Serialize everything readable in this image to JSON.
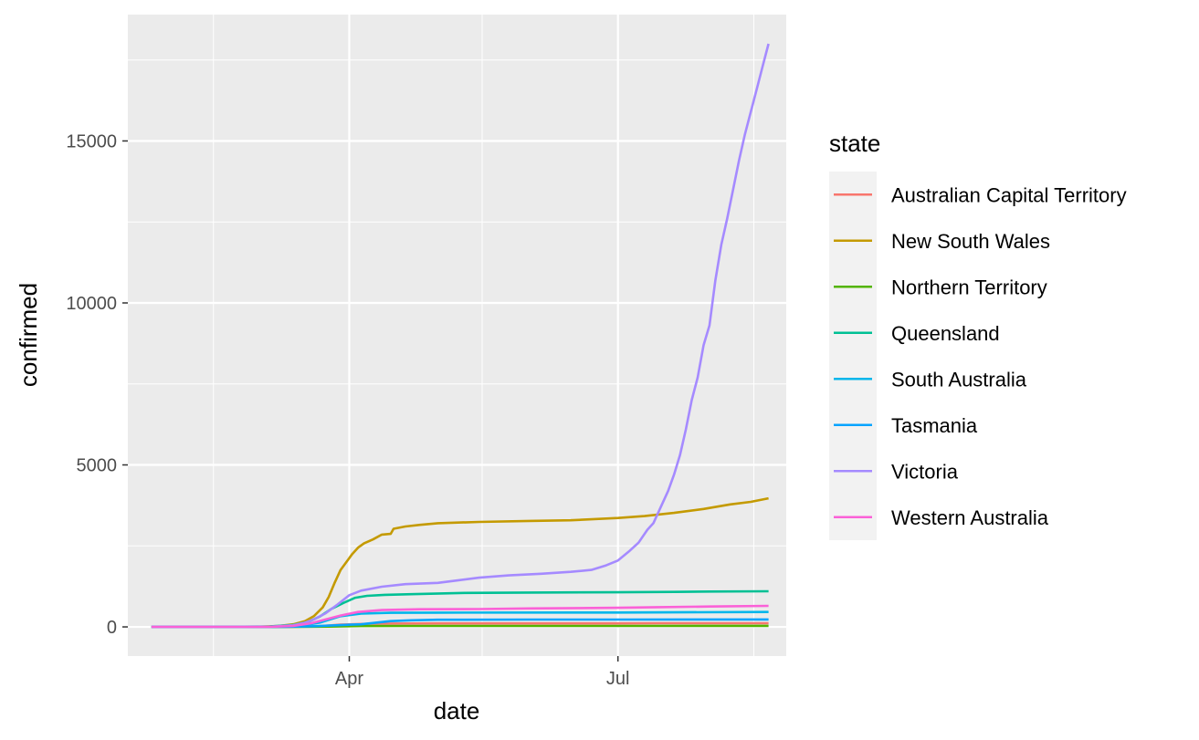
{
  "chart_data": {
    "type": "line",
    "xlabel": "date",
    "ylabel": "confirmed",
    "x_tick_labels": [
      "Apr",
      "Jul"
    ],
    "y_tick_labels": [
      "0",
      "5000",
      "10000",
      "15000"
    ],
    "y_ticks": [
      0,
      5000,
      10000,
      15000
    ],
    "xlim": [
      "2020-01-17",
      "2020-08-27"
    ],
    "ylim": [
      -900,
      18900
    ],
    "x_major_ticks": [
      "2020-04-01",
      "2020-07-01"
    ],
    "x_minor_ticks": [
      "2020-02-15",
      "2020-05-16",
      "2020-08-16"
    ],
    "y_minor_ticks": [
      2500,
      7500,
      12500,
      17500
    ],
    "grid": true,
    "legend_position": "right",
    "legend_title": "state",
    "series": [
      {
        "name": "Australian Capital Territory",
        "color": "#F8766D",
        "points": [
          [
            "2020-01-25",
            0
          ],
          [
            "2020-03-12",
            0
          ],
          [
            "2020-03-22",
            20
          ],
          [
            "2020-03-29",
            70
          ],
          [
            "2020-04-08",
            100
          ],
          [
            "2020-05-01",
            107
          ],
          [
            "2020-06-01",
            108
          ],
          [
            "2020-07-01",
            109
          ],
          [
            "2020-07-15",
            113
          ],
          [
            "2020-08-21",
            113
          ]
        ]
      },
      {
        "name": "New South Wales",
        "color": "#C49A00",
        "points": [
          [
            "2020-01-25",
            0
          ],
          [
            "2020-02-15",
            0
          ],
          [
            "2020-03-01",
            4
          ],
          [
            "2020-03-08",
            30
          ],
          [
            "2020-03-13",
            80
          ],
          [
            "2020-03-17",
            180
          ],
          [
            "2020-03-20",
            330
          ],
          [
            "2020-03-23",
            600
          ],
          [
            "2020-03-25",
            920
          ],
          [
            "2020-03-27",
            1350
          ],
          [
            "2020-03-29",
            1750
          ],
          [
            "2020-03-31",
            2000
          ],
          [
            "2020-04-02",
            2250
          ],
          [
            "2020-04-04",
            2450
          ],
          [
            "2020-04-06",
            2580
          ],
          [
            "2020-04-09",
            2700
          ],
          [
            "2020-04-12",
            2850
          ],
          [
            "2020-04-15",
            2870
          ],
          [
            "2020-04-16",
            3030
          ],
          [
            "2020-04-20",
            3100
          ],
          [
            "2020-04-25",
            3150
          ],
          [
            "2020-05-01",
            3200
          ],
          [
            "2020-05-15",
            3240
          ],
          [
            "2020-06-01",
            3270
          ],
          [
            "2020-06-15",
            3290
          ],
          [
            "2020-07-01",
            3360
          ],
          [
            "2020-07-10",
            3420
          ],
          [
            "2020-07-20",
            3520
          ],
          [
            "2020-07-30",
            3640
          ],
          [
            "2020-08-08",
            3780
          ],
          [
            "2020-08-15",
            3860
          ],
          [
            "2020-08-21",
            3970
          ]
        ]
      },
      {
        "name": "Northern Territory",
        "color": "#53B400",
        "points": [
          [
            "2020-01-25",
            0
          ],
          [
            "2020-03-15",
            0
          ],
          [
            "2020-03-25",
            10
          ],
          [
            "2020-04-05",
            27
          ],
          [
            "2020-04-20",
            29
          ],
          [
            "2020-06-01",
            29
          ],
          [
            "2020-07-01",
            30
          ],
          [
            "2020-08-21",
            33
          ]
        ]
      },
      {
        "name": "Queensland",
        "color": "#00C094",
        "points": [
          [
            "2020-01-25",
            0
          ],
          [
            "2020-02-20",
            0
          ],
          [
            "2020-03-05",
            15
          ],
          [
            "2020-03-13",
            60
          ],
          [
            "2020-03-18",
            150
          ],
          [
            "2020-03-22",
            320
          ],
          [
            "2020-03-26",
            560
          ],
          [
            "2020-03-30",
            740
          ],
          [
            "2020-04-03",
            900
          ],
          [
            "2020-04-07",
            960
          ],
          [
            "2020-04-13",
            990
          ],
          [
            "2020-04-22",
            1010
          ],
          [
            "2020-05-10",
            1050
          ],
          [
            "2020-06-01",
            1060
          ],
          [
            "2020-07-01",
            1070
          ],
          [
            "2020-07-20",
            1080
          ],
          [
            "2020-08-01",
            1090
          ],
          [
            "2020-08-21",
            1100
          ]
        ]
      },
      {
        "name": "South Australia",
        "color": "#00B6EB",
        "points": [
          [
            "2020-01-25",
            0
          ],
          [
            "2020-03-05",
            0
          ],
          [
            "2020-03-15",
            30
          ],
          [
            "2020-03-22",
            130
          ],
          [
            "2020-03-29",
            330
          ],
          [
            "2020-04-05",
            410
          ],
          [
            "2020-04-15",
            435
          ],
          [
            "2020-05-01",
            440
          ],
          [
            "2020-07-01",
            443
          ],
          [
            "2020-08-21",
            460
          ]
        ]
      },
      {
        "name": "Tasmania",
        "color": "#06A4FF",
        "points": [
          [
            "2020-01-25",
            0
          ],
          [
            "2020-03-10",
            0
          ],
          [
            "2020-03-20",
            20
          ],
          [
            "2020-03-30",
            60
          ],
          [
            "2020-04-05",
            80
          ],
          [
            "2020-04-10",
            130
          ],
          [
            "2020-04-15",
            180
          ],
          [
            "2020-04-22",
            205
          ],
          [
            "2020-05-01",
            222
          ],
          [
            "2020-06-01",
            226
          ],
          [
            "2020-07-01",
            227
          ],
          [
            "2020-08-21",
            230
          ]
        ]
      },
      {
        "name": "Victoria",
        "color": "#A58AFF",
        "points": [
          [
            "2020-01-25",
            0
          ],
          [
            "2020-02-25",
            0
          ],
          [
            "2020-03-06",
            10
          ],
          [
            "2020-03-13",
            50
          ],
          [
            "2020-03-17",
            130
          ],
          [
            "2020-03-20",
            230
          ],
          [
            "2020-03-24",
            420
          ],
          [
            "2020-03-28",
            690
          ],
          [
            "2020-04-01",
            980
          ],
          [
            "2020-04-05",
            1120
          ],
          [
            "2020-04-12",
            1240
          ],
          [
            "2020-04-20",
            1320
          ],
          [
            "2020-05-01",
            1360
          ],
          [
            "2020-05-08",
            1440
          ],
          [
            "2020-05-15",
            1520
          ],
          [
            "2020-05-25",
            1590
          ],
          [
            "2020-06-05",
            1640
          ],
          [
            "2020-06-15",
            1700
          ],
          [
            "2020-06-22",
            1760
          ],
          [
            "2020-06-27",
            1900
          ],
          [
            "2020-07-01",
            2050
          ],
          [
            "2020-07-05",
            2350
          ],
          [
            "2020-07-08",
            2600
          ],
          [
            "2020-07-11",
            3000
          ],
          [
            "2020-07-13",
            3200
          ],
          [
            "2020-07-15",
            3600
          ],
          [
            "2020-07-18",
            4200
          ],
          [
            "2020-07-20",
            4700
          ],
          [
            "2020-07-22",
            5300
          ],
          [
            "2020-07-24",
            6100
          ],
          [
            "2020-07-26",
            7000
          ],
          [
            "2020-07-28",
            7700
          ],
          [
            "2020-07-30",
            8700
          ],
          [
            "2020-08-01",
            9300
          ],
          [
            "2020-08-03",
            10700
          ],
          [
            "2020-08-05",
            11800
          ],
          [
            "2020-08-07",
            12600
          ],
          [
            "2020-08-09",
            13500
          ],
          [
            "2020-08-11",
            14400
          ],
          [
            "2020-08-13",
            15200
          ],
          [
            "2020-08-15",
            15900
          ],
          [
            "2020-08-17",
            16600
          ],
          [
            "2020-08-19",
            17300
          ],
          [
            "2020-08-21",
            18000
          ]
        ]
      },
      {
        "name": "Western Australia",
        "color": "#FB61D7",
        "points": [
          [
            "2020-01-25",
            0
          ],
          [
            "2020-03-05",
            0
          ],
          [
            "2020-03-13",
            30
          ],
          [
            "2020-03-19",
            110
          ],
          [
            "2020-03-24",
            230
          ],
          [
            "2020-03-29",
            350
          ],
          [
            "2020-04-04",
            460
          ],
          [
            "2020-04-12",
            520
          ],
          [
            "2020-04-25",
            545
          ],
          [
            "2020-05-15",
            550
          ],
          [
            "2020-06-01",
            570
          ],
          [
            "2020-07-01",
            590
          ],
          [
            "2020-07-15",
            610
          ],
          [
            "2020-08-01",
            630
          ],
          [
            "2020-08-21",
            650
          ]
        ]
      }
    ]
  }
}
